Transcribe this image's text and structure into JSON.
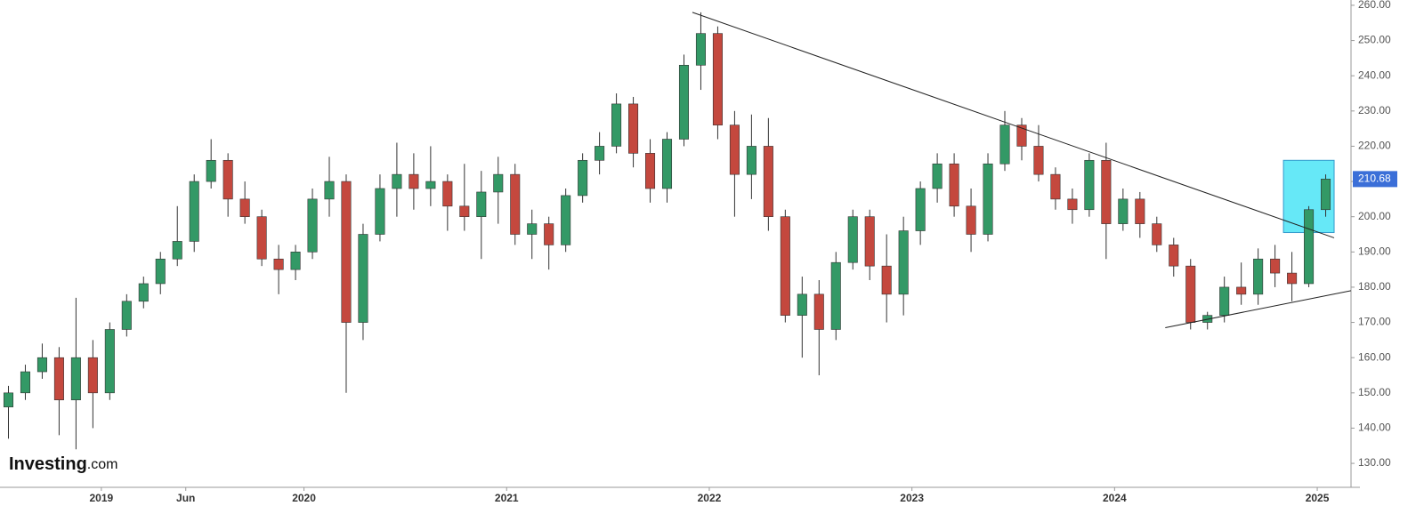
{
  "chart_data": {
    "type": "candlestick",
    "x": [
      "2018-07",
      "2018-08",
      "2018-09",
      "2018-10",
      "2018-11",
      "2018-12",
      "2019-01",
      "2019-02",
      "2019-03",
      "2019-04",
      "2019-05",
      "2019-06",
      "2019-07",
      "2019-08",
      "2019-09",
      "2019-10",
      "2019-11",
      "2019-12",
      "2020-01",
      "2020-02",
      "2020-03",
      "2020-04",
      "2020-05",
      "2020-06",
      "2020-07",
      "2020-08",
      "2020-09",
      "2020-10",
      "2020-11",
      "2020-12",
      "2021-01",
      "2021-02",
      "2021-03",
      "2021-04",
      "2021-05",
      "2021-06",
      "2021-07",
      "2021-08",
      "2021-09",
      "2021-10",
      "2021-11",
      "2021-12",
      "2022-01",
      "2022-02",
      "2022-03",
      "2022-04",
      "2022-05",
      "2022-06",
      "2022-07",
      "2022-08",
      "2022-09",
      "2022-10",
      "2022-11",
      "2022-12",
      "2023-01",
      "2023-02",
      "2023-03",
      "2023-04",
      "2023-05",
      "2023-06",
      "2023-07",
      "2023-08",
      "2023-09",
      "2023-10",
      "2023-11",
      "2023-12",
      "2024-01",
      "2024-02",
      "2024-03",
      "2024-04",
      "2024-05",
      "2024-06",
      "2024-07",
      "2024-08",
      "2024-09",
      "2024-10",
      "2024-11",
      "2024-12",
      "2025-01"
    ],
    "open": [
      146,
      150,
      156,
      160,
      148,
      160,
      150,
      168,
      176,
      181,
      188,
      193,
      210,
      216,
      205,
      200,
      188,
      185,
      190,
      205,
      210,
      170,
      195,
      208,
      212,
      208,
      210,
      203,
      200,
      207,
      212,
      195,
      198,
      192,
      206,
      216,
      220,
      232,
      218,
      208,
      222,
      243,
      252,
      226,
      212,
      220,
      200,
      172,
      178,
      168,
      187,
      200,
      186,
      178,
      196,
      208,
      215,
      203,
      195,
      215,
      226,
      220,
      212,
      205,
      202,
      216,
      198,
      205,
      198,
      192,
      186,
      170,
      172,
      180,
      178,
      188,
      184,
      181,
      202
    ],
    "high": [
      152,
      158,
      164,
      163,
      177,
      165,
      170,
      178,
      183,
      190,
      203,
      212,
      222,
      218,
      210,
      202,
      192,
      192,
      208,
      217,
      212,
      198,
      212,
      221,
      218,
      220,
      212,
      215,
      213,
      217,
      215,
      202,
      200,
      208,
      218,
      224,
      235,
      234,
      222,
      224,
      246,
      258,
      254,
      230,
      229,
      228,
      202,
      183,
      182,
      190,
      202,
      202,
      195,
      200,
      210,
      218,
      218,
      208,
      218,
      230,
      228,
      226,
      214,
      208,
      218,
      221,
      208,
      207,
      200,
      194,
      188,
      173,
      183,
      187,
      191,
      192,
      190,
      203,
      212
    ],
    "low": [
      137,
      148,
      154,
      138,
      134,
      140,
      148,
      166,
      174,
      178,
      186,
      190,
      208,
      200,
      198,
      186,
      178,
      182,
      188,
      200,
      150,
      165,
      193,
      200,
      202,
      203,
      196,
      196,
      188,
      198,
      192,
      188,
      185,
      190,
      204,
      212,
      218,
      214,
      204,
      204,
      220,
      236,
      222,
      200,
      205,
      196,
      170,
      160,
      155,
      165,
      185,
      182,
      170,
      172,
      192,
      204,
      200,
      190,
      193,
      213,
      216,
      210,
      202,
      198,
      200,
      188,
      196,
      194,
      190,
      183,
      168,
      168,
      170,
      175,
      175,
      180,
      176,
      180,
      200
    ],
    "close": [
      150,
      156,
      160,
      148,
      160,
      150,
      168,
      176,
      181,
      188,
      193,
      210,
      216,
      205,
      200,
      188,
      185,
      190,
      205,
      210,
      170,
      195,
      208,
      212,
      208,
      210,
      203,
      200,
      207,
      212,
      195,
      198,
      192,
      206,
      216,
      220,
      232,
      218,
      208,
      222,
      243,
      252,
      226,
      212,
      220,
      200,
      172,
      178,
      168,
      187,
      200,
      186,
      178,
      196,
      208,
      215,
      203,
      195,
      215,
      226,
      220,
      212,
      205,
      202,
      216,
      198,
      205,
      198,
      192,
      186,
      170,
      172,
      180,
      178,
      188,
      184,
      181,
      202,
      210.68
    ],
    "up_color": "#339966",
    "down_color": "#c4483e",
    "xlim": [
      "2018-07",
      "2025-03"
    ],
    "xticks": [
      {
        "value": "2019-01",
        "label": "2019"
      },
      {
        "value": "2019-06",
        "label": "Jun"
      },
      {
        "value": "2020-01",
        "label": "2020"
      },
      {
        "value": "2021-01",
        "label": "2021"
      },
      {
        "value": "2022-01",
        "label": "2022"
      },
      {
        "value": "2023-01",
        "label": "2023"
      },
      {
        "value": "2024-01",
        "label": "2024"
      },
      {
        "value": "2025-01",
        "label": "2025"
      }
    ],
    "ylim": [
      123.2,
      261.5
    ],
    "yticks": [
      {
        "value": 130,
        "label": "130.00"
      },
      {
        "value": 140,
        "label": "140.00"
      },
      {
        "value": 150,
        "label": "150.00"
      },
      {
        "value": 160,
        "label": "160.00"
      },
      {
        "value": 170,
        "label": "170.00"
      },
      {
        "value": 180,
        "label": "180.00"
      },
      {
        "value": 190,
        "label": "190.00"
      },
      {
        "value": 200,
        "label": "200.00"
      },
      {
        "value": 210,
        "label": "210.00"
      },
      {
        "value": 220,
        "label": "220.00"
      },
      {
        "value": 230,
        "label": "230.00"
      },
      {
        "value": 240,
        "label": "240.00"
      },
      {
        "value": 250,
        "label": "250.00"
      },
      {
        "value": 260,
        "label": "260.00"
      }
    ],
    "last_price": 210.68,
    "last_price_color": "#3b6fd8",
    "trendlines": [
      {
        "x": [
          "2021-12",
          "2025-02"
        ],
        "y": [
          258,
          194
        ]
      },
      {
        "x": [
          "2024-04",
          "2025-03"
        ],
        "y": [
          168.5,
          179
        ]
      }
    ],
    "highlight": {
      "x": [
        "2024-11",
        "2025-02"
      ],
      "y": [
        195.5,
        216
      ],
      "color": "#66e8f7"
    }
  },
  "logo": {
    "name": "Investing",
    "suffix": ".com"
  }
}
